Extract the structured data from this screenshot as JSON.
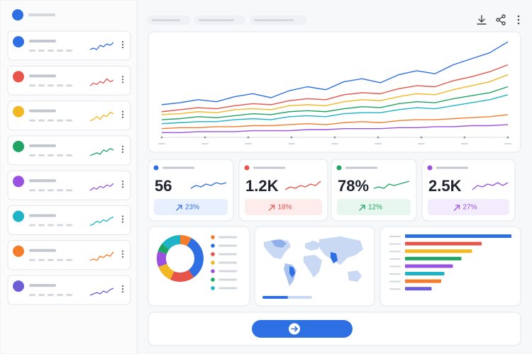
{
  "sidebar": [
    {
      "color": "#2f6fe4",
      "spark": [
        3,
        4,
        3,
        6,
        5,
        7,
        6,
        8
      ]
    },
    {
      "color": "#e8534a",
      "spark": [
        2,
        4,
        3,
        5,
        4,
        7,
        5,
        6
      ]
    },
    {
      "color": "#f2b824",
      "spark": [
        2,
        3,
        5,
        3,
        6,
        5,
        8,
        7
      ]
    },
    {
      "color": "#1fa463",
      "spark": [
        2,
        3,
        4,
        3,
        6,
        5,
        7,
        6
      ]
    },
    {
      "color": "#9b51e0",
      "spark": [
        2,
        4,
        3,
        5,
        4,
        6,
        5,
        7
      ]
    },
    {
      "color": "#1db4c8",
      "spark": [
        2,
        3,
        5,
        4,
        6,
        5,
        7,
        8
      ]
    },
    {
      "color": "#f57c2a",
      "spark": [
        2,
        3,
        2,
        5,
        4,
        6,
        5,
        8
      ]
    },
    {
      "color": "#6c5fd6",
      "spark": [
        2,
        3,
        4,
        3,
        5,
        4,
        6,
        7
      ]
    }
  ],
  "spark_ylim": [
    0,
    10
  ],
  "line_chart": {
    "type": "line",
    "ylim": [
      0,
      100
    ],
    "series": [
      {
        "color": "#2f6fe4",
        "values": [
          32,
          34,
          37,
          35,
          40,
          43,
          39,
          46,
          50,
          47,
          55,
          58,
          54,
          62,
          66,
          63,
          72,
          78,
          84,
          95
        ]
      },
      {
        "color": "#e8534a",
        "values": [
          25,
          27,
          29,
          28,
          31,
          33,
          32,
          36,
          38,
          37,
          42,
          44,
          43,
          48,
          51,
          50,
          56,
          60,
          65,
          72
        ]
      },
      {
        "color": "#f2b824",
        "values": [
          22,
          23,
          25,
          24,
          27,
          28,
          27,
          31,
          32,
          31,
          35,
          37,
          36,
          40,
          43,
          42,
          47,
          51,
          55,
          62
        ]
      },
      {
        "color": "#1fa463",
        "values": [
          17,
          18,
          20,
          19,
          21,
          23,
          22,
          25,
          26,
          25,
          28,
          30,
          29,
          33,
          35,
          34,
          38,
          41,
          44,
          50
        ]
      },
      {
        "color": "#1db4c8",
        "values": [
          13,
          14,
          15,
          15,
          17,
          18,
          17,
          20,
          21,
          20,
          23,
          24,
          24,
          27,
          29,
          28,
          31,
          34,
          37,
          42
        ]
      },
      {
        "color": "#f57c2a",
        "values": [
          8,
          9,
          9,
          10,
          10,
          11,
          11,
          12,
          13,
          12,
          14,
          15,
          14,
          16,
          17,
          17,
          18,
          19,
          20,
          22
        ]
      },
      {
        "color": "#9b51e0",
        "values": [
          4,
          4,
          5,
          5,
          5,
          6,
          6,
          6,
          7,
          7,
          8,
          8,
          8,
          9,
          9,
          10,
          10,
          11,
          11,
          12
        ]
      }
    ]
  },
  "kpis": [
    {
      "value": "56",
      "change": "23%",
      "color": "#2f6fe4",
      "tint": "#e8f0fd",
      "spark": [
        3,
        5,
        4,
        6,
        5,
        7,
        6,
        7
      ]
    },
    {
      "value": "1.2K",
      "change": "18%",
      "color": "#e8534a",
      "tint": "#fdeceb",
      "spark": [
        2,
        4,
        3,
        5,
        4,
        6,
        5,
        8
      ]
    },
    {
      "value": "78%",
      "change": "12%",
      "color": "#1fa463",
      "tint": "#e7f6ee",
      "spark": [
        3,
        4,
        3,
        6,
        5,
        6,
        7,
        8
      ]
    },
    {
      "value": "2.5K",
      "change": "27%",
      "color": "#9b51e0",
      "tint": "#f3ecfc",
      "spark": [
        2,
        5,
        4,
        6,
        5,
        7,
        5,
        7
      ]
    }
  ],
  "donut": {
    "type": "pie",
    "values": [
      8,
      32,
      17,
      12,
      11,
      6,
      14
    ],
    "colors": [
      "#f57c2a",
      "#2f6fe4",
      "#e8534a",
      "#f2b824",
      "#9b51e0",
      "#1fa463",
      "#1db4c8"
    ]
  },
  "bar_chart": {
    "type": "bar",
    "xlim": [
      0,
      100
    ],
    "values": [
      100,
      72,
      63,
      53,
      45,
      37,
      34,
      25
    ],
    "colors": [
      "#2f6fe4",
      "#e8534a",
      "#f2b824",
      "#1fa463",
      "#9b51e0",
      "#1db4c8",
      "#f57c2a",
      "#6c5fd6"
    ]
  }
}
